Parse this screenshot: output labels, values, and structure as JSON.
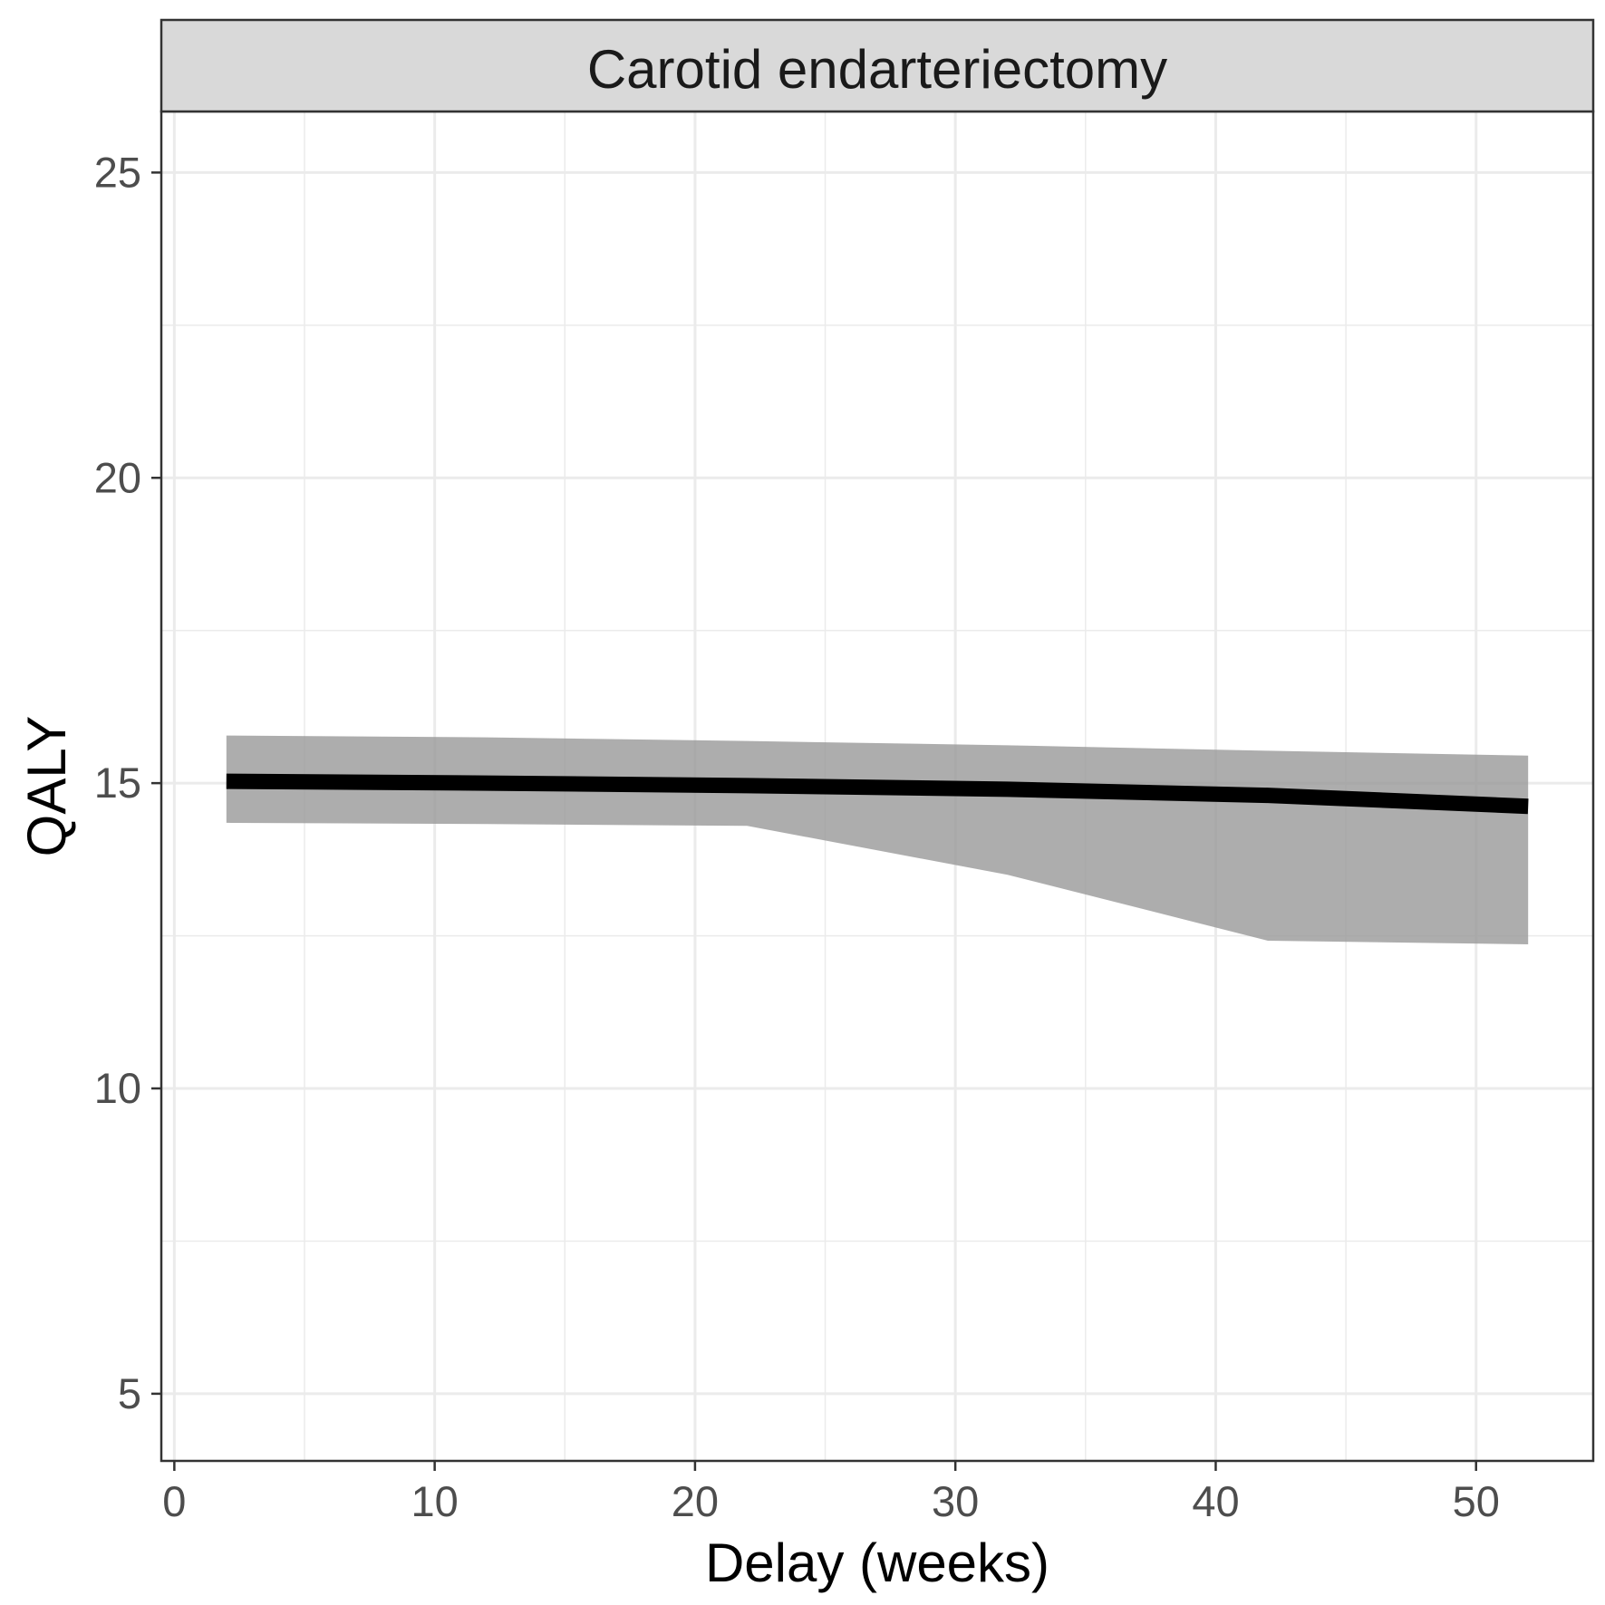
{
  "chart_data": {
    "type": "line",
    "facet_title": "Carotid endarteriectomy",
    "xlabel": "Delay (weeks)",
    "ylabel": "QALY",
    "xlim": [
      -0.5,
      54.5
    ],
    "ylim": [
      3.9,
      26.0
    ],
    "x_ticks": [
      0,
      10,
      20,
      30,
      40,
      50
    ],
    "y_ticks": [
      5,
      10,
      15,
      20,
      25
    ],
    "x_minor_ticks": [
      5,
      15,
      25,
      35,
      45
    ],
    "y_minor_ticks": [
      7.5,
      12.5,
      17.5,
      22.5
    ],
    "grid": true,
    "series": [
      {
        "x": [
          2,
          12,
          22,
          32,
          42,
          52
        ],
        "y": [
          15.03,
          15.0,
          14.96,
          14.9,
          14.8,
          14.62
        ],
        "ci_lower": [
          14.35,
          14.33,
          14.3,
          13.5,
          12.42,
          12.36
        ],
        "ci_upper": [
          15.78,
          15.75,
          15.69,
          15.62,
          15.53,
          15.45
        ]
      }
    ],
    "colors": {
      "line": "#000000",
      "ribbon": "#999999",
      "strip_fill": "#d9d9d9",
      "grid": "#ebebeb",
      "border": "#333333"
    }
  }
}
